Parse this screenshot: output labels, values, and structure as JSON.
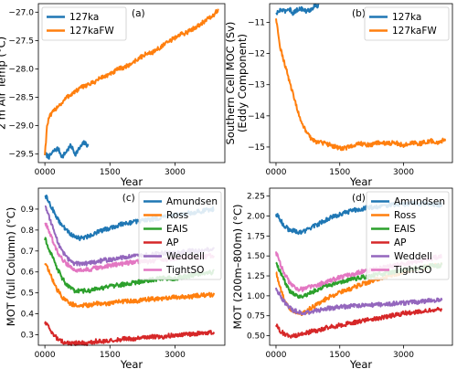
{
  "chart_data": [
    {
      "type": "line",
      "panel_label": "(a)",
      "xlabel": "Year",
      "ylabel": "2 m Air Temp ($^\\circ$C)",
      "xlim": [
        -150,
        4150
      ],
      "ylim": [
        -29.65,
        -26.85
      ],
      "xticks": [
        0,
        1500,
        3000
      ],
      "xtick_labels": [
        "0000",
        "1500",
        "3000"
      ],
      "yticks": [
        -29.5,
        -29.0,
        -28.5,
        -28.0,
        -27.5,
        -27.0
      ],
      "ytick_labels": [
        "−29.5",
        "−29.0",
        "−28.5",
        "−28.0",
        "−27.5",
        "−27.0"
      ],
      "legend_position": "upper-left",
      "series": [
        {
          "name": "127ka",
          "color": "#1f77b4",
          "x": [
            0,
            100,
            200,
            300,
            400,
            500,
            600,
            700,
            800,
            900,
            1000
          ],
          "y": [
            -29.5,
            -29.55,
            -29.45,
            -29.4,
            -29.55,
            -29.45,
            -29.35,
            -29.5,
            -29.4,
            -29.3,
            -29.35
          ]
        },
        {
          "name": "127kaFW",
          "color": "#ff7f0e",
          "x": [
            0,
            50,
            100,
            200,
            300,
            400,
            500,
            700,
            900,
            1100,
            1300,
            1500,
            1700,
            1900,
            2100,
            2300,
            2500,
            2700,
            2900,
            3100,
            3300,
            3500,
            3700,
            3900,
            4000
          ],
          "y": [
            -29.5,
            -29.0,
            -28.85,
            -28.75,
            -28.65,
            -28.6,
            -28.5,
            -28.4,
            -28.3,
            -28.25,
            -28.15,
            -28.1,
            -28.0,
            -27.95,
            -27.85,
            -27.75,
            -27.7,
            -27.6,
            -27.5,
            -27.4,
            -27.35,
            -27.25,
            -27.15,
            -27.05,
            -26.95
          ]
        }
      ]
    },
    {
      "type": "line",
      "panel_label": "(b)",
      "xlabel": "Year",
      "ylabel": "Southern Cell MOC (Sv)\n(Eddy Component)",
      "xlim": [
        -150,
        4150
      ],
      "ylim": [
        -15.5,
        -10.4
      ],
      "xticks": [
        0,
        1500,
        3000
      ],
      "xtick_labels": [
        "0000",
        "1500",
        "3000"
      ],
      "yticks": [
        -11,
        -12,
        -13,
        -14,
        -15
      ],
      "ytick_labels": [
        "−11",
        "−12",
        "−13",
        "−14",
        "−15"
      ],
      "legend_position": "upper-right",
      "series": [
        {
          "name": "127ka",
          "color": "#1f77b4",
          "x": [
            0,
            100,
            200,
            300,
            400,
            500,
            600,
            700,
            800,
            900,
            1000
          ],
          "y": [
            -10.75,
            -10.6,
            -10.65,
            -10.55,
            -10.7,
            -10.6,
            -10.55,
            -10.65,
            -10.6,
            -10.5,
            -10.45
          ]
        },
        {
          "name": "127kaFW",
          "color": "#ff7f0e",
          "x": [
            0,
            50,
            100,
            200,
            300,
            400,
            500,
            600,
            700,
            800,
            900,
            1000,
            1200,
            1400,
            1600,
            1800,
            2000,
            2200,
            2400,
            2600,
            2800,
            3000,
            3200,
            3400,
            3600,
            3800,
            4000
          ],
          "y": [
            -10.9,
            -11.3,
            -11.8,
            -12.3,
            -12.8,
            -13.3,
            -13.8,
            -14.2,
            -14.5,
            -14.7,
            -14.8,
            -14.85,
            -14.9,
            -15.0,
            -15.05,
            -14.95,
            -14.9,
            -14.95,
            -14.85,
            -14.9,
            -14.85,
            -14.95,
            -14.85,
            -14.9,
            -14.8,
            -14.85,
            -14.75
          ]
        }
      ]
    },
    {
      "type": "line",
      "panel_label": "(c)",
      "xlabel": "Year",
      "ylabel": "MOT (full Column) ($^\\circ$C)",
      "xlim": [
        -150,
        4150
      ],
      "ylim": [
        0.25,
        1.0
      ],
      "xticks": [
        0,
        1500,
        3000
      ],
      "xtick_labels": [
        "0000",
        "1500",
        "3000"
      ],
      "yticks": [
        0.3,
        0.4,
        0.5,
        0.6,
        0.7,
        0.8,
        0.9
      ],
      "ytick_labels": [
        "0.3",
        "0.4",
        "0.5",
        "0.6",
        "0.7",
        "0.8",
        "0.9"
      ],
      "legend_position": "upper-right",
      "series": [
        {
          "name": "Amundsen",
          "color": "#1f77b4",
          "x": [
            0,
            100,
            200,
            300,
            400,
            500,
            600,
            700,
            800,
            1000,
            1200,
            1500,
            1800,
            2100,
            2400,
            2700,
            3000,
            3300,
            3600,
            3900
          ],
          "y": [
            0.97,
            0.93,
            0.89,
            0.85,
            0.82,
            0.8,
            0.78,
            0.77,
            0.76,
            0.77,
            0.79,
            0.81,
            0.83,
            0.84,
            0.85,
            0.86,
            0.87,
            0.88,
            0.89,
            0.9
          ]
        },
        {
          "name": "Ross",
          "color": "#ff7f0e",
          "x": [
            0,
            100,
            200,
            300,
            400,
            500,
            600,
            700,
            800,
            1000,
            1200,
            1500,
            1800,
            2100,
            2400,
            2700,
            3000,
            3300,
            3600,
            3900
          ],
          "y": [
            0.65,
            0.6,
            0.55,
            0.51,
            0.48,
            0.46,
            0.45,
            0.44,
            0.44,
            0.44,
            0.45,
            0.45,
            0.46,
            0.46,
            0.47,
            0.47,
            0.48,
            0.48,
            0.49,
            0.49
          ]
        },
        {
          "name": "EAIS",
          "color": "#2ca02c",
          "x": [
            0,
            100,
            200,
            300,
            400,
            500,
            600,
            700,
            800,
            1000,
            1200,
            1500,
            1800,
            2100,
            2400,
            2700,
            3000,
            3300,
            3600,
            3900
          ],
          "y": [
            0.76,
            0.71,
            0.66,
            0.61,
            0.57,
            0.54,
            0.52,
            0.51,
            0.51,
            0.51,
            0.52,
            0.53,
            0.54,
            0.55,
            0.56,
            0.57,
            0.57,
            0.58,
            0.59,
            0.6
          ]
        },
        {
          "name": "AP",
          "color": "#d62728",
          "x": [
            0,
            100,
            200,
            300,
            400,
            500,
            600,
            700,
            800,
            1000,
            1200,
            1500,
            1800,
            2100,
            2400,
            2700,
            3000,
            3300,
            3600,
            3900
          ],
          "y": [
            0.36,
            0.33,
            0.3,
            0.28,
            0.27,
            0.26,
            0.26,
            0.26,
            0.26,
            0.26,
            0.27,
            0.27,
            0.28,
            0.28,
            0.29,
            0.29,
            0.3,
            0.3,
            0.31,
            0.31
          ]
        },
        {
          "name": "Weddell",
          "color": "#9467bd",
          "x": [
            0,
            100,
            200,
            300,
            400,
            500,
            600,
            700,
            800,
            1000,
            1200,
            1500,
            1800,
            2100,
            2400,
            2700,
            3000,
            3300,
            3600,
            3900
          ],
          "y": [
            0.92,
            0.86,
            0.8,
            0.74,
            0.7,
            0.67,
            0.65,
            0.64,
            0.64,
            0.64,
            0.65,
            0.66,
            0.67,
            0.68,
            0.68,
            0.69,
            0.69,
            0.7,
            0.7,
            0.71
          ]
        },
        {
          "name": "TightSO",
          "color": "#e377c2",
          "x": [
            0,
            100,
            200,
            300,
            400,
            500,
            600,
            700,
            800,
            1000,
            1200,
            1500,
            1800,
            2100,
            2400,
            2700,
            3000,
            3300,
            3600,
            3900
          ],
          "y": [
            0.84,
            0.79,
            0.74,
            0.69,
            0.66,
            0.64,
            0.62,
            0.61,
            0.61,
            0.61,
            0.62,
            0.63,
            0.64,
            0.65,
            0.65,
            0.66,
            0.66,
            0.67,
            0.67,
            0.68
          ]
        }
      ]
    },
    {
      "type": "line",
      "panel_label": "(d)",
      "xlabel": "Year",
      "ylabel": "MOT (200m–800m) ($^\\circ$C)",
      "xlim": [
        -150,
        4150
      ],
      "ylim": [
        0.38,
        2.35
      ],
      "xticks": [
        0,
        1500,
        3000
      ],
      "xtick_labels": [
        "0000",
        "1500",
        "3000"
      ],
      "yticks": [
        0.5,
        0.75,
        1.0,
        1.25,
        1.5,
        1.75,
        2.0,
        2.25
      ],
      "ytick_labels": [
        "0.50",
        "0.75",
        "1.00",
        "1.25",
        "1.50",
        "1.75",
        "2.00",
        "2.25"
      ],
      "legend_position": "upper-right",
      "series": [
        {
          "name": "Amundsen",
          "color": "#1f77b4",
          "x": [
            0,
            100,
            200,
            300,
            400,
            500,
            600,
            700,
            800,
            1000,
            1200,
            1500,
            1800,
            2100,
            2400,
            2700,
            3000,
            3300,
            3600,
            3900
          ],
          "y": [
            2.03,
            1.95,
            1.88,
            1.83,
            1.82,
            1.8,
            1.79,
            1.82,
            1.85,
            1.9,
            1.96,
            2.02,
            2.07,
            2.1,
            2.12,
            2.14,
            2.15,
            2.16,
            2.15,
            2.14
          ]
        },
        {
          "name": "Ross",
          "color": "#ff7f0e",
          "x": [
            0,
            100,
            200,
            300,
            400,
            500,
            600,
            700,
            800,
            1000,
            1200,
            1500,
            1800,
            2100,
            2400,
            2700,
            3000,
            3300,
            3600,
            3900
          ],
          "y": [
            1.3,
            1.1,
            0.95,
            0.85,
            0.8,
            0.78,
            0.78,
            0.8,
            0.84,
            0.9,
            0.97,
            1.04,
            1.1,
            1.16,
            1.21,
            1.26,
            1.3,
            1.34,
            1.37,
            1.4
          ]
        },
        {
          "name": "EAIS",
          "color": "#2ca02c",
          "x": [
            0,
            100,
            200,
            300,
            400,
            500,
            600,
            700,
            800,
            1000,
            1200,
            1500,
            1800,
            2100,
            2400,
            2700,
            3000,
            3300,
            3600,
            3900
          ],
          "y": [
            1.42,
            1.3,
            1.18,
            1.08,
            1.02,
            0.99,
            0.98,
            1.0,
            1.04,
            1.08,
            1.13,
            1.17,
            1.21,
            1.24,
            1.27,
            1.29,
            1.32,
            1.35,
            1.37,
            1.38
          ]
        },
        {
          "name": "AP",
          "color": "#d62728",
          "x": [
            0,
            100,
            200,
            300,
            400,
            500,
            600,
            700,
            800,
            1000,
            1200,
            1500,
            1800,
            2100,
            2400,
            2700,
            3000,
            3300,
            3600,
            3900
          ],
          "y": [
            0.63,
            0.56,
            0.52,
            0.5,
            0.5,
            0.51,
            0.52,
            0.53,
            0.55,
            0.57,
            0.6,
            0.63,
            0.66,
            0.69,
            0.72,
            0.75,
            0.78,
            0.8,
            0.82,
            0.84
          ]
        },
        {
          "name": "Weddell",
          "color": "#9467bd",
          "x": [
            0,
            100,
            200,
            300,
            400,
            500,
            600,
            700,
            800,
            1000,
            1200,
            1500,
            1800,
            2100,
            2400,
            2700,
            3000,
            3300,
            3600,
            3900
          ],
          "y": [
            1.1,
            1.0,
            0.92,
            0.86,
            0.82,
            0.8,
            0.79,
            0.79,
            0.8,
            0.82,
            0.84,
            0.86,
            0.87,
            0.88,
            0.89,
            0.9,
            0.91,
            0.92,
            0.94,
            0.95
          ]
        },
        {
          "name": "TightSO",
          "color": "#e377c2",
          "x": [
            0,
            100,
            200,
            300,
            400,
            500,
            600,
            700,
            800,
            1000,
            1200,
            1500,
            1800,
            2100,
            2400,
            2700,
            3000,
            3300,
            3600,
            3900
          ],
          "y": [
            1.55,
            1.4,
            1.28,
            1.18,
            1.12,
            1.09,
            1.08,
            1.09,
            1.11,
            1.14,
            1.18,
            1.23,
            1.27,
            1.31,
            1.34,
            1.37,
            1.4,
            1.43,
            1.46,
            1.5
          ]
        }
      ]
    }
  ]
}
